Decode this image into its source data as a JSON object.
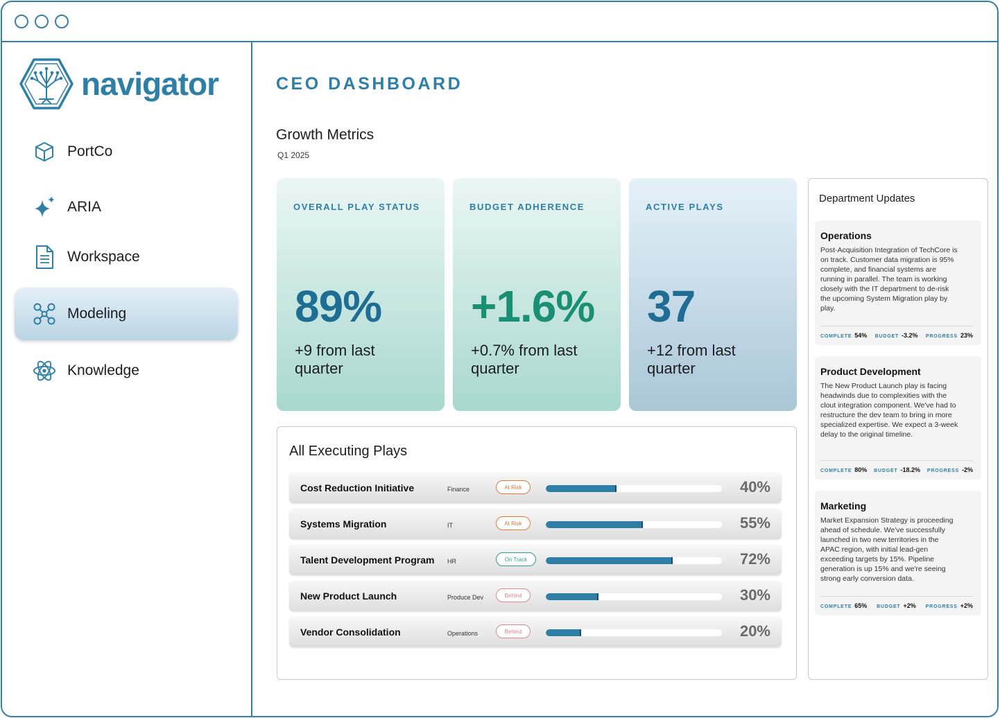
{
  "brand": {
    "name": "navigator",
    "color": "#2e7ea6"
  },
  "sidebar": {
    "items": [
      {
        "label": "PortCo",
        "icon": "cube-icon"
      },
      {
        "label": "ARIA",
        "icon": "sparkle-icon"
      },
      {
        "label": "Workspace",
        "icon": "document-icon"
      },
      {
        "label": "Modeling",
        "icon": "network-icon",
        "active": true
      },
      {
        "label": "Knowledge",
        "icon": "atom-icon"
      }
    ]
  },
  "header": {
    "title": "CEO DASHBOARD"
  },
  "growth": {
    "title": "Growth Metrics",
    "period": "Q1 2025"
  },
  "metrics": [
    {
      "label": "OVERALL PLAY STATUS",
      "value": "89%",
      "delta_value": "+9",
      "delta_text": " from last quarter",
      "color": "#1f6d93"
    },
    {
      "label": "BUDGET ADHERENCE",
      "value": "+1.6%",
      "delta_value": "+0.7%",
      "delta_text": " from last quarter",
      "color": "#1a8f74"
    },
    {
      "label": "ACTIVE PLAYS",
      "value": "37",
      "delta_value": "+12",
      "delta_text": " from last quarter",
      "color": "#1f6d93"
    }
  ],
  "plays": {
    "title": "All Executing Plays",
    "rows": [
      {
        "name": "Cost Reduction Initiative",
        "dept": "Finance",
        "status": "At Risk",
        "progress": 40,
        "progress_label": "40%"
      },
      {
        "name": "Systems Migration",
        "dept": "IT",
        "status": "At Risk",
        "progress": 55,
        "progress_label": "55%"
      },
      {
        "name": "Talent Development Program",
        "dept": "HR",
        "status": "On Track",
        "progress": 72,
        "progress_label": "72%"
      },
      {
        "name": "New Product Launch",
        "dept": "Produce Dev",
        "status": "Behind",
        "progress": 30,
        "progress_label": "30%"
      },
      {
        "name": "Vendor Consolidation",
        "dept": "Operations",
        "status": "Behind",
        "progress": 20,
        "progress_label": "20%"
      }
    ]
  },
  "updates": {
    "title": "Department Updates",
    "meta_labels": {
      "complete": "COMPLETE",
      "budget": "BUDGET",
      "progress": "PROGRESS"
    },
    "items": [
      {
        "title": "Operations",
        "body": "Post-Acquisition Integration of TechCore is on track. Customer data migration is 95% complete, and financial systems are running in parallel. The team is working closely with the IT department to de-risk the upcoming System Migration play by play.",
        "complete": "54%",
        "budget": "-3.2%",
        "progress": "23%"
      },
      {
        "title": "Product Development",
        "body": "The New Product Launch play is facing headwinds due to complexities with the clout integration component. We've had to restructure the dev team to bring in more specialized expertise. We expect a 3-week delay to the original timeline.",
        "complete": "80%",
        "budget": "-18.2%",
        "progress": "-2%"
      },
      {
        "title": "Marketing",
        "body": "Market Expansion Strategy is proceeding ahead of schedule. We've successfully launched in two new territories in the APAC region, with initial lead-gen exceeding targets by 15%. Pipeline generation is up 15% and we're seeing strong early conversion data.",
        "complete": "65%",
        "budget": "+2%",
        "progress": "+2%"
      }
    ]
  }
}
